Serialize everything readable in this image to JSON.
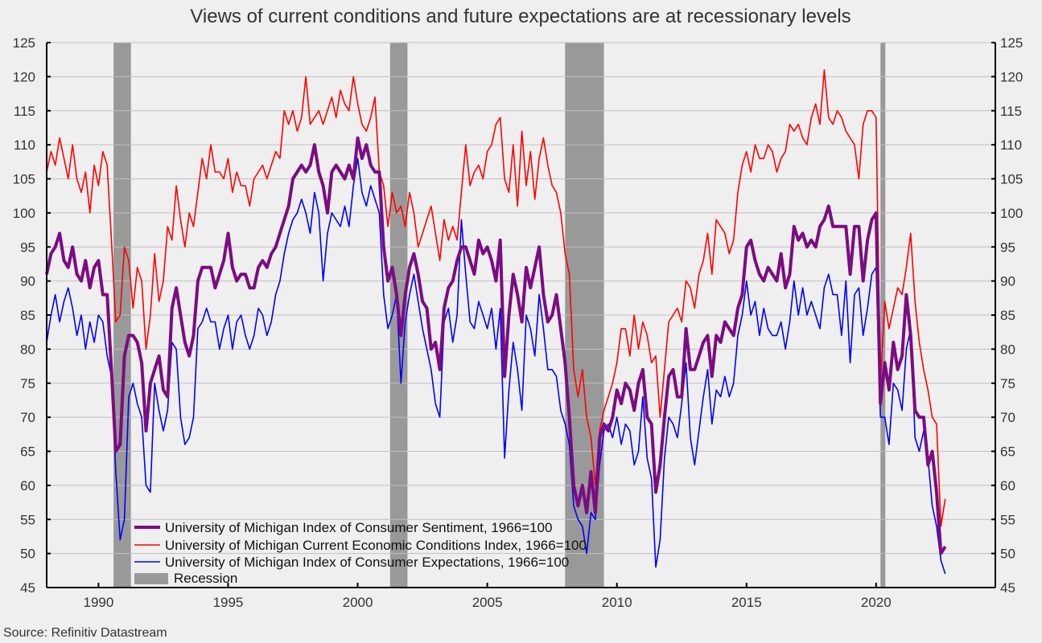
{
  "chart_data": {
    "type": "line",
    "title": "Views of current conditions and future expectations are at recessionary levels",
    "source": "Source: Refinitiv Datastream",
    "xlabel": "",
    "ylabel": "",
    "xlim": [
      1988.0,
      2024.6
    ],
    "ylim": [
      45,
      125
    ],
    "y_ticks": [
      45,
      50,
      55,
      60,
      65,
      70,
      75,
      80,
      85,
      90,
      95,
      100,
      105,
      110,
      115,
      120,
      125
    ],
    "x_ticks": [
      1990,
      1995,
      2000,
      2005,
      2010,
      2015,
      2020
    ],
    "x_tick_labels": [
      "1990",
      "1995",
      "2000",
      "2005",
      "2010",
      "2015",
      "2020"
    ],
    "grid": true,
    "dual_y_axis": true,
    "legend_position": "bottom-left",
    "x_start": 1988.0,
    "x_step_years": 0.16667,
    "recessions": [
      {
        "start": 1990.58,
        "end": 1991.25
      },
      {
        "start": 2001.25,
        "end": 2001.92
      },
      {
        "start": 2008.0,
        "end": 2009.5
      },
      {
        "start": 2020.17,
        "end": 2020.33
      }
    ],
    "recession_color": "#999999",
    "recession_label": "Recession",
    "series": [
      {
        "name": "University of Michigan Index of Consumer Sentiment, 1966=100",
        "color": "#7b0c82",
        "style": "thick",
        "values": [
          91,
          94,
          95,
          97,
          93,
          92,
          95,
          91,
          90,
          93,
          89,
          92,
          93,
          88,
          88,
          77,
          65,
          66,
          79,
          82,
          82,
          81,
          78,
          68,
          75,
          77,
          79,
          74,
          73,
          86,
          89,
          85,
          81,
          79,
          82,
          90,
          92,
          92,
          92,
          89,
          91,
          93,
          97,
          92,
          90,
          91,
          91,
          89,
          89,
          92,
          93,
          92,
          94,
          95,
          97,
          99,
          101,
          105,
          106,
          107,
          106,
          107,
          110,
          106,
          104,
          100,
          106,
          107,
          106,
          105,
          107,
          105,
          111,
          108,
          110,
          107,
          106,
          106,
          95,
          90,
          92,
          88,
          82,
          88,
          92,
          94,
          91,
          87,
          86,
          80,
          81,
          77,
          86,
          89,
          90,
          93,
          95,
          95,
          93,
          91,
          96,
          94,
          95,
          93,
          90,
          96,
          76,
          85,
          91,
          88,
          84,
          92,
          89,
          92,
          95,
          88,
          84,
          85,
          88,
          83,
          78,
          70,
          60,
          57,
          60,
          56,
          62,
          56,
          67,
          69,
          68,
          70,
          74,
          72,
          75,
          74,
          71,
          75,
          77,
          70,
          69,
          59,
          63,
          70,
          76,
          77,
          73,
          73,
          83,
          77,
          77,
          79,
          81,
          82,
          76,
          82,
          81,
          84,
          83,
          82,
          86,
          88,
          95,
          96,
          93,
          91,
          90,
          92,
          91,
          90,
          94,
          89,
          91,
          98,
          96,
          97,
          95,
          96,
          95,
          98,
          99,
          101,
          98,
          98,
          98,
          98,
          91,
          98,
          98,
          90,
          96,
          99,
          100,
          72,
          78,
          74,
          81,
          77,
          79,
          88,
          82,
          71,
          70,
          70,
          63,
          65,
          59,
          50,
          51
        ]
      },
      {
        "name": "University of Michigan Current Economic Conditions Index, 1966=100",
        "color": "#ff0000",
        "style": "thin",
        "values": [
          106,
          109,
          107,
          111,
          108,
          105,
          110,
          105,
          103,
          106,
          100,
          107,
          104,
          109,
          107,
          96,
          84,
          85,
          95,
          93,
          86,
          92,
          90,
          80,
          85,
          94,
          87,
          90,
          98,
          96,
          104,
          99,
          95,
          100,
          98,
          103,
          108,
          105,
          110,
          106,
          106,
          105,
          108,
          103,
          106,
          104,
          104,
          101,
          105,
          106,
          107,
          105,
          107,
          109,
          108,
          115,
          113,
          115,
          112,
          114,
          120,
          113,
          114,
          115,
          113,
          115,
          117,
          114,
          118,
          116,
          115,
          120,
          116,
          113,
          112,
          114,
          117,
          106,
          104,
          98,
          103,
          100,
          101,
          98,
          103,
          100,
          95,
          97,
          99,
          101,
          97,
          93,
          99,
          96,
          98,
          96,
          103,
          110,
          104,
          106,
          107,
          105,
          109,
          110,
          113,
          114,
          105,
          103,
          110,
          101,
          112,
          104,
          109,
          102,
          108,
          111,
          107,
          104,
          103,
          100,
          94,
          91,
          77,
          73,
          77,
          70,
          67,
          60,
          68,
          71,
          73,
          75,
          78,
          83,
          83,
          79,
          85,
          80,
          84,
          82,
          78,
          79,
          70,
          77,
          84,
          85,
          86,
          84,
          90,
          89,
          86,
          91,
          93,
          97,
          91,
          99,
          98,
          97,
          94,
          96,
          103,
          107,
          109,
          106,
          110,
          108,
          108,
          110,
          109,
          106,
          108,
          109,
          113,
          112,
          113,
          111,
          110,
          114,
          116,
          113,
          121,
          114,
          113,
          115,
          114,
          112,
          111,
          110,
          105,
          113,
          115,
          115,
          114,
          75,
          87,
          83,
          86,
          89,
          88,
          92,
          97,
          87,
          81,
          77,
          74,
          70,
          69,
          54,
          58
        ]
      },
      {
        "name": "University of Michigan Index of Consumer Expectations, 1966=100",
        "color": "#0000ff",
        "style": "thin",
        "values": [
          81,
          85,
          88,
          84,
          87,
          89,
          86,
          82,
          85,
          80,
          84,
          81,
          85,
          84,
          79,
          76,
          62,
          52,
          55,
          73,
          75,
          72,
          70,
          60,
          59,
          75,
          71,
          68,
          71,
          81,
          80,
          70,
          66,
          67,
          70,
          83,
          84,
          86,
          84,
          84,
          80,
          83,
          85,
          80,
          84,
          85,
          82,
          80,
          82,
          86,
          85,
          82,
          84,
          88,
          90,
          94,
          97,
          99,
          100,
          102,
          100,
          97,
          103,
          100,
          90,
          97,
          100,
          99,
          98,
          101,
          98,
          104,
          108,
          103,
          101,
          104,
          102,
          100,
          88,
          83,
          85,
          88,
          75,
          84,
          88,
          91,
          87,
          83,
          80,
          77,
          72,
          70,
          84,
          86,
          81,
          85,
          99,
          91,
          84,
          83,
          87,
          85,
          83,
          86,
          80,
          86,
          64,
          74,
          81,
          77,
          71,
          85,
          83,
          79,
          88,
          83,
          77,
          77,
          76,
          71,
          69,
          66,
          57,
          55,
          54,
          50,
          56,
          55,
          63,
          68,
          69,
          67,
          70,
          66,
          69,
          68,
          63,
          65,
          73,
          64,
          61,
          48,
          52,
          64,
          70,
          69,
          67,
          72,
          78,
          67,
          63,
          68,
          73,
          77,
          69,
          74,
          73,
          76,
          73,
          75,
          82,
          85,
          90,
          85,
          87,
          82,
          86,
          83,
          82,
          82,
          84,
          80,
          84,
          90,
          85,
          89,
          85,
          87,
          85,
          83,
          89,
          91,
          88,
          88,
          82,
          90,
          78,
          88,
          89,
          82,
          86,
          91,
          92,
          70,
          70,
          66,
          75,
          74,
          71,
          80,
          83,
          67,
          65,
          68,
          64,
          57,
          54,
          49,
          47
        ]
      }
    ]
  }
}
